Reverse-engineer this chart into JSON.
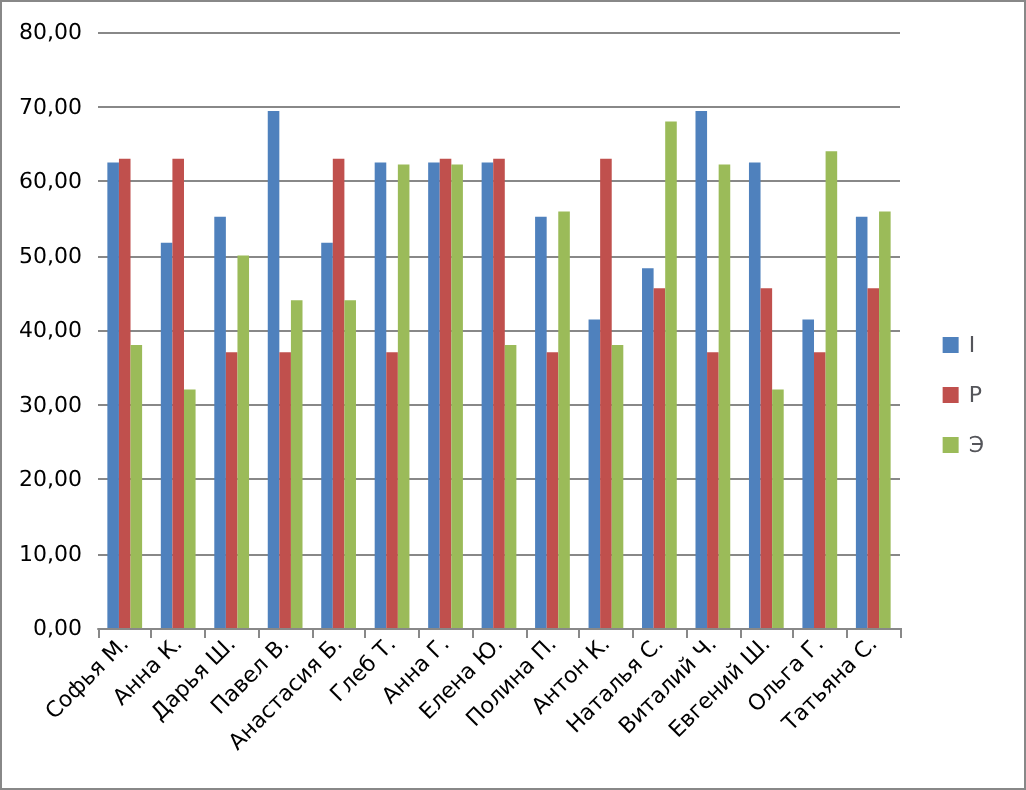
{
  "chart_data": {
    "type": "bar",
    "categories": [
      "Софья М.",
      "Анна К.",
      "Дарья Ш.",
      "Павел В.",
      "Анастасия Б.",
      "Глеб Т.",
      "Анна Г.",
      "Елена Ю.",
      "Полина П.",
      "Антон К.",
      "Наталья С.",
      "Виталий Ч.",
      "Евгений Ш.",
      "Ольга Г.",
      "Татьяна С."
    ],
    "series": [
      {
        "name": "I",
        "color": "#4f81bd",
        "values": [
          62.5,
          51.7,
          55.2,
          69.4,
          51.7,
          62.5,
          62.5,
          62.5,
          55.2,
          41.4,
          48.3,
          69.4,
          62.5,
          41.4,
          55.2
        ]
      },
      {
        "name": "P",
        "color": "#c0504d",
        "values": [
          63,
          63,
          37,
          37,
          63,
          37,
          63,
          63,
          37,
          63,
          45.6,
          37,
          45.6,
          37,
          45.6
        ]
      },
      {
        "name": "Э",
        "color": "#9bbb59",
        "values": [
          38,
          32,
          50,
          44,
          44,
          62.2,
          62.2,
          38,
          55.9,
          38,
          68,
          62.2,
          32,
          64,
          55.9
        ]
      }
    ],
    "ylim": [
      0,
      80
    ],
    "yticks": [
      {
        "value": 0,
        "label": "0,00"
      },
      {
        "value": 10,
        "label": "10,00"
      },
      {
        "value": 20,
        "label": "20,00"
      },
      {
        "value": 30,
        "label": "30,00"
      },
      {
        "value": 40,
        "label": "40,00"
      },
      {
        "value": 50,
        "label": "50,00"
      },
      {
        "value": 60,
        "label": "60,00"
      },
      {
        "value": 70,
        "label": "70,00"
      },
      {
        "value": 80,
        "label": "80,00"
      }
    ],
    "grid": "y",
    "legend": "right"
  }
}
